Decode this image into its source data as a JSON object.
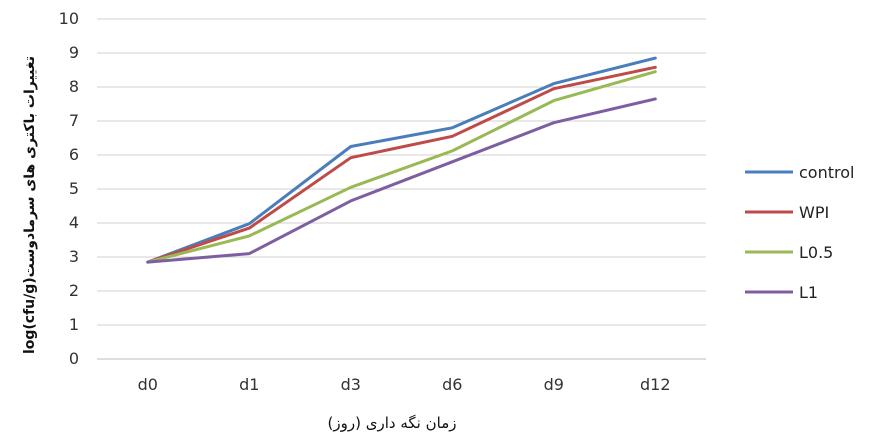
{
  "chart_data": {
    "type": "line",
    "categories": [
      "d0",
      "d1",
      "d3",
      "d6",
      "d9",
      "d12"
    ],
    "series": [
      {
        "name": "control",
        "color": "#4a7ebb",
        "values": [
          2.85,
          3.98,
          6.25,
          6.8,
          8.1,
          8.85
        ]
      },
      {
        "name": "WPI",
        "color": "#be4b48",
        "values": [
          2.85,
          3.85,
          5.92,
          6.55,
          7.95,
          8.58
        ]
      },
      {
        "name": "L0.5",
        "color": "#98b954",
        "values": [
          2.85,
          3.62,
          5.05,
          6.12,
          7.6,
          8.45
        ]
      },
      {
        "name": "L1",
        "color": "#7d5fa0",
        "values": [
          2.85,
          3.1,
          4.65,
          5.8,
          6.95,
          7.65
        ]
      }
    ],
    "xlabel": "زمان نگه داری (روز)",
    "ylabel": "log(cfu/g)تغییرات باکتری های سرمادوست",
    "ylim": [
      0,
      10
    ],
    "yticks": [
      "0",
      "1",
      "2",
      "3",
      "4",
      "5",
      "6",
      "7",
      "8",
      "9",
      "10"
    ],
    "grid": true,
    "legend_position": "right",
    "gridline_color": "#d0d0d0"
  }
}
